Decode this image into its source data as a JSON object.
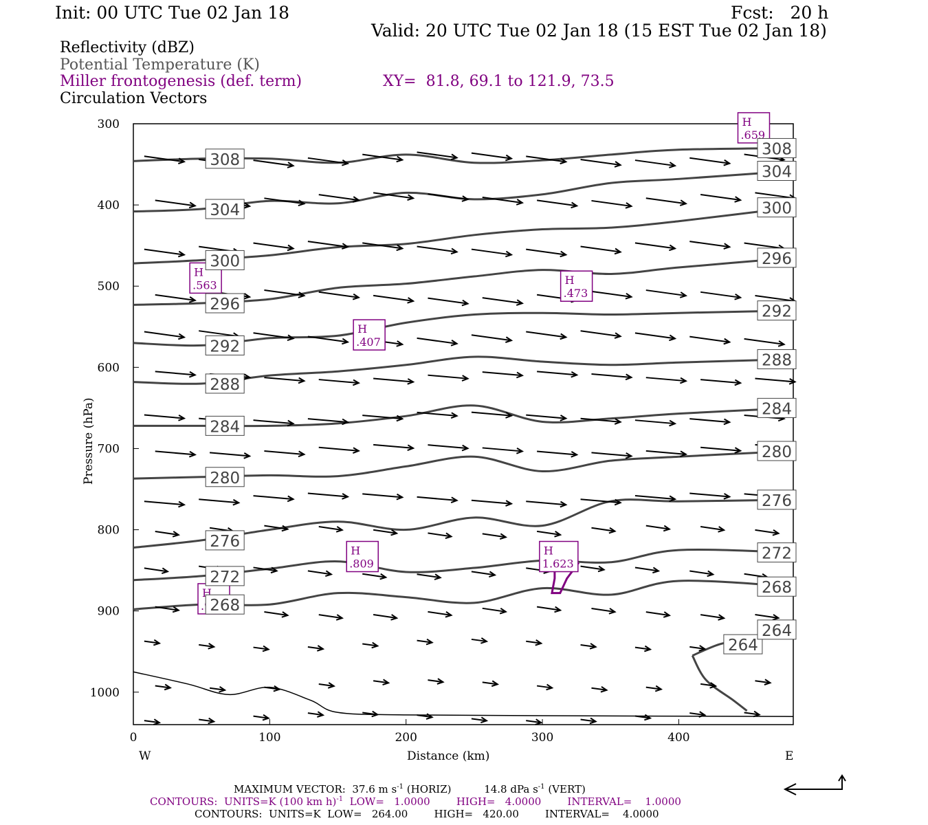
{
  "header": {
    "init": "Init: 00 UTC Tue 02 Jan 18",
    "fcst": "Fcst:   20 h",
    "valid": "Valid: 20 UTC Tue 02 Jan 18 (15 EST Tue 02 Jan 18)"
  },
  "legend": {
    "reflectivity": "Reflectivity (dBZ)",
    "theta": "Potential Temperature (K)",
    "miller": "Miller frontogenesis (def. term)",
    "xy": "XY=  81.8, 69.1 to 121.9, 73.5",
    "vectors": "Circulation Vectors"
  },
  "footer": {
    "maxvec_a": "MAXIMUM VECTOR:  37.6 m s",
    "maxvec_b": "(HORIZ)",
    "maxvec_c": "14.8 dPa s",
    "maxvec_d": "(VERT)",
    "c1_a": "CONTOURS:  UNITS=K (100 km h)",
    "c1_b": "LOW=   1.0000        HIGH=   4.0000        INTERVAL=    1.0000",
    "c2": "CONTOURS:  UNITS=K  LOW=   264.00        HIGH=   420.00        INTERVAL=    4.0000",
    "exp": "-1"
  },
  "colors": {
    "theta": "#444444",
    "frontogenesis": "#800080",
    "vectors": "#000000"
  },
  "chart_data": {
    "type": "cross-section",
    "xlabel": "Distance (km)",
    "ylabel": "Pressure (hPa)",
    "xlim": [
      0,
      484
    ],
    "ylim": [
      1040,
      300
    ],
    "y_scale": "reverse",
    "xticks": [
      0,
      100,
      200,
      300,
      400
    ],
    "yticks": [
      300,
      400,
      500,
      600,
      700,
      800,
      900,
      1000
    ],
    "x_end_labels": {
      "left": "W",
      "right": "E"
    },
    "theta_isentropes": [
      {
        "label": "308",
        "points": [
          [
            0,
            346
          ],
          [
            50,
            343
          ],
          [
            100,
            343
          ],
          [
            150,
            348
          ],
          [
            200,
            338
          ],
          [
            250,
            348
          ],
          [
            300,
            345
          ],
          [
            350,
            338
          ],
          [
            400,
            332
          ],
          [
            484,
            330
          ]
        ]
      },
      {
        "label": "304",
        "points": [
          [
            0,
            408
          ],
          [
            50,
            405
          ],
          [
            100,
            395
          ],
          [
            150,
            398
          ],
          [
            200,
            385
          ],
          [
            250,
            393
          ],
          [
            300,
            387
          ],
          [
            350,
            373
          ],
          [
            400,
            368
          ],
          [
            484,
            358
          ]
        ]
      },
      {
        "label": "300",
        "points": [
          [
            0,
            472
          ],
          [
            50,
            468
          ],
          [
            100,
            462
          ],
          [
            150,
            452
          ],
          [
            200,
            448
          ],
          [
            250,
            437
          ],
          [
            300,
            430
          ],
          [
            350,
            428
          ],
          [
            400,
            420
          ],
          [
            484,
            403
          ]
        ]
      },
      {
        "label": "296",
        "points": [
          [
            0,
            523
          ],
          [
            50,
            521
          ],
          [
            100,
            516
          ],
          [
            150,
            502
          ],
          [
            200,
            497
          ],
          [
            250,
            488
          ],
          [
            300,
            480
          ],
          [
            350,
            485
          ],
          [
            400,
            477
          ],
          [
            484,
            465
          ]
        ]
      },
      {
        "label": "292",
        "points": [
          [
            0,
            570
          ],
          [
            50,
            573
          ],
          [
            100,
            564
          ],
          [
            150,
            561
          ],
          [
            200,
            545
          ],
          [
            250,
            535
          ],
          [
            300,
            533
          ],
          [
            350,
            535
          ],
          [
            400,
            533
          ],
          [
            484,
            530
          ]
        ]
      },
      {
        "label": "288",
        "points": [
          [
            0,
            618
          ],
          [
            50,
            620
          ],
          [
            100,
            610
          ],
          [
            150,
            605
          ],
          [
            200,
            597
          ],
          [
            250,
            587
          ],
          [
            300,
            593
          ],
          [
            350,
            597
          ],
          [
            400,
            594
          ],
          [
            484,
            590
          ]
        ]
      },
      {
        "label": "284",
        "points": [
          [
            0,
            672
          ],
          [
            50,
            672
          ],
          [
            100,
            672
          ],
          [
            150,
            669
          ],
          [
            200,
            660
          ],
          [
            250,
            647
          ],
          [
            300,
            667
          ],
          [
            350,
            663
          ],
          [
            400,
            657
          ],
          [
            484,
            650
          ]
        ]
      },
      {
        "label": "280",
        "points": [
          [
            0,
            737
          ],
          [
            50,
            735
          ],
          [
            100,
            733
          ],
          [
            150,
            734
          ],
          [
            200,
            722
          ],
          [
            250,
            710
          ],
          [
            300,
            728
          ],
          [
            350,
            715
          ],
          [
            400,
            710
          ],
          [
            484,
            703
          ]
        ]
      },
      {
        "label": "276",
        "points": [
          [
            0,
            822
          ],
          [
            50,
            813
          ],
          [
            100,
            800
          ],
          [
            150,
            790
          ],
          [
            200,
            800
          ],
          [
            250,
            785
          ],
          [
            300,
            795
          ],
          [
            350,
            765
          ],
          [
            400,
            765
          ],
          [
            484,
            763
          ]
        ]
      },
      {
        "label": "272",
        "points": [
          [
            0,
            862
          ],
          [
            50,
            857
          ],
          [
            100,
            848
          ],
          [
            150,
            839
          ],
          [
            200,
            852
          ],
          [
            250,
            847
          ],
          [
            300,
            838
          ],
          [
            350,
            840
          ],
          [
            400,
            825
          ],
          [
            484,
            828
          ]
        ]
      },
      {
        "label": "268",
        "points": [
          [
            0,
            898
          ],
          [
            50,
            892
          ],
          [
            100,
            892
          ],
          [
            150,
            878
          ],
          [
            200,
            883
          ],
          [
            250,
            890
          ],
          [
            300,
            872
          ],
          [
            350,
            880
          ],
          [
            400,
            863
          ],
          [
            484,
            870
          ]
        ]
      },
      {
        "label": "264",
        "points": [
          [
            410,
            955
          ],
          [
            430,
            941
          ],
          [
            450,
            935
          ],
          [
            470,
            928
          ],
          [
            484,
            923
          ]
        ]
      }
    ],
    "frontogenesis_maxima": [
      {
        "label": "H",
        "value": ".563",
        "x": 53,
        "p": 490
      },
      {
        "label": "H",
        "value": ".473",
        "x": 325,
        "p": 500
      },
      {
        "label": "H",
        "value": ".407",
        "x": 173,
        "p": 560
      },
      {
        "label": "H",
        "value": ".809",
        "x": 168,
        "p": 833
      },
      {
        "label": "H",
        "value": "1.623",
        "x": 312,
        "p": 833
      },
      {
        "label": "H",
        "value": ".941",
        "x": 59,
        "p": 885
      },
      {
        "label": "H",
        "value": ".659",
        "x": 455,
        "p": 305
      }
    ]
  }
}
